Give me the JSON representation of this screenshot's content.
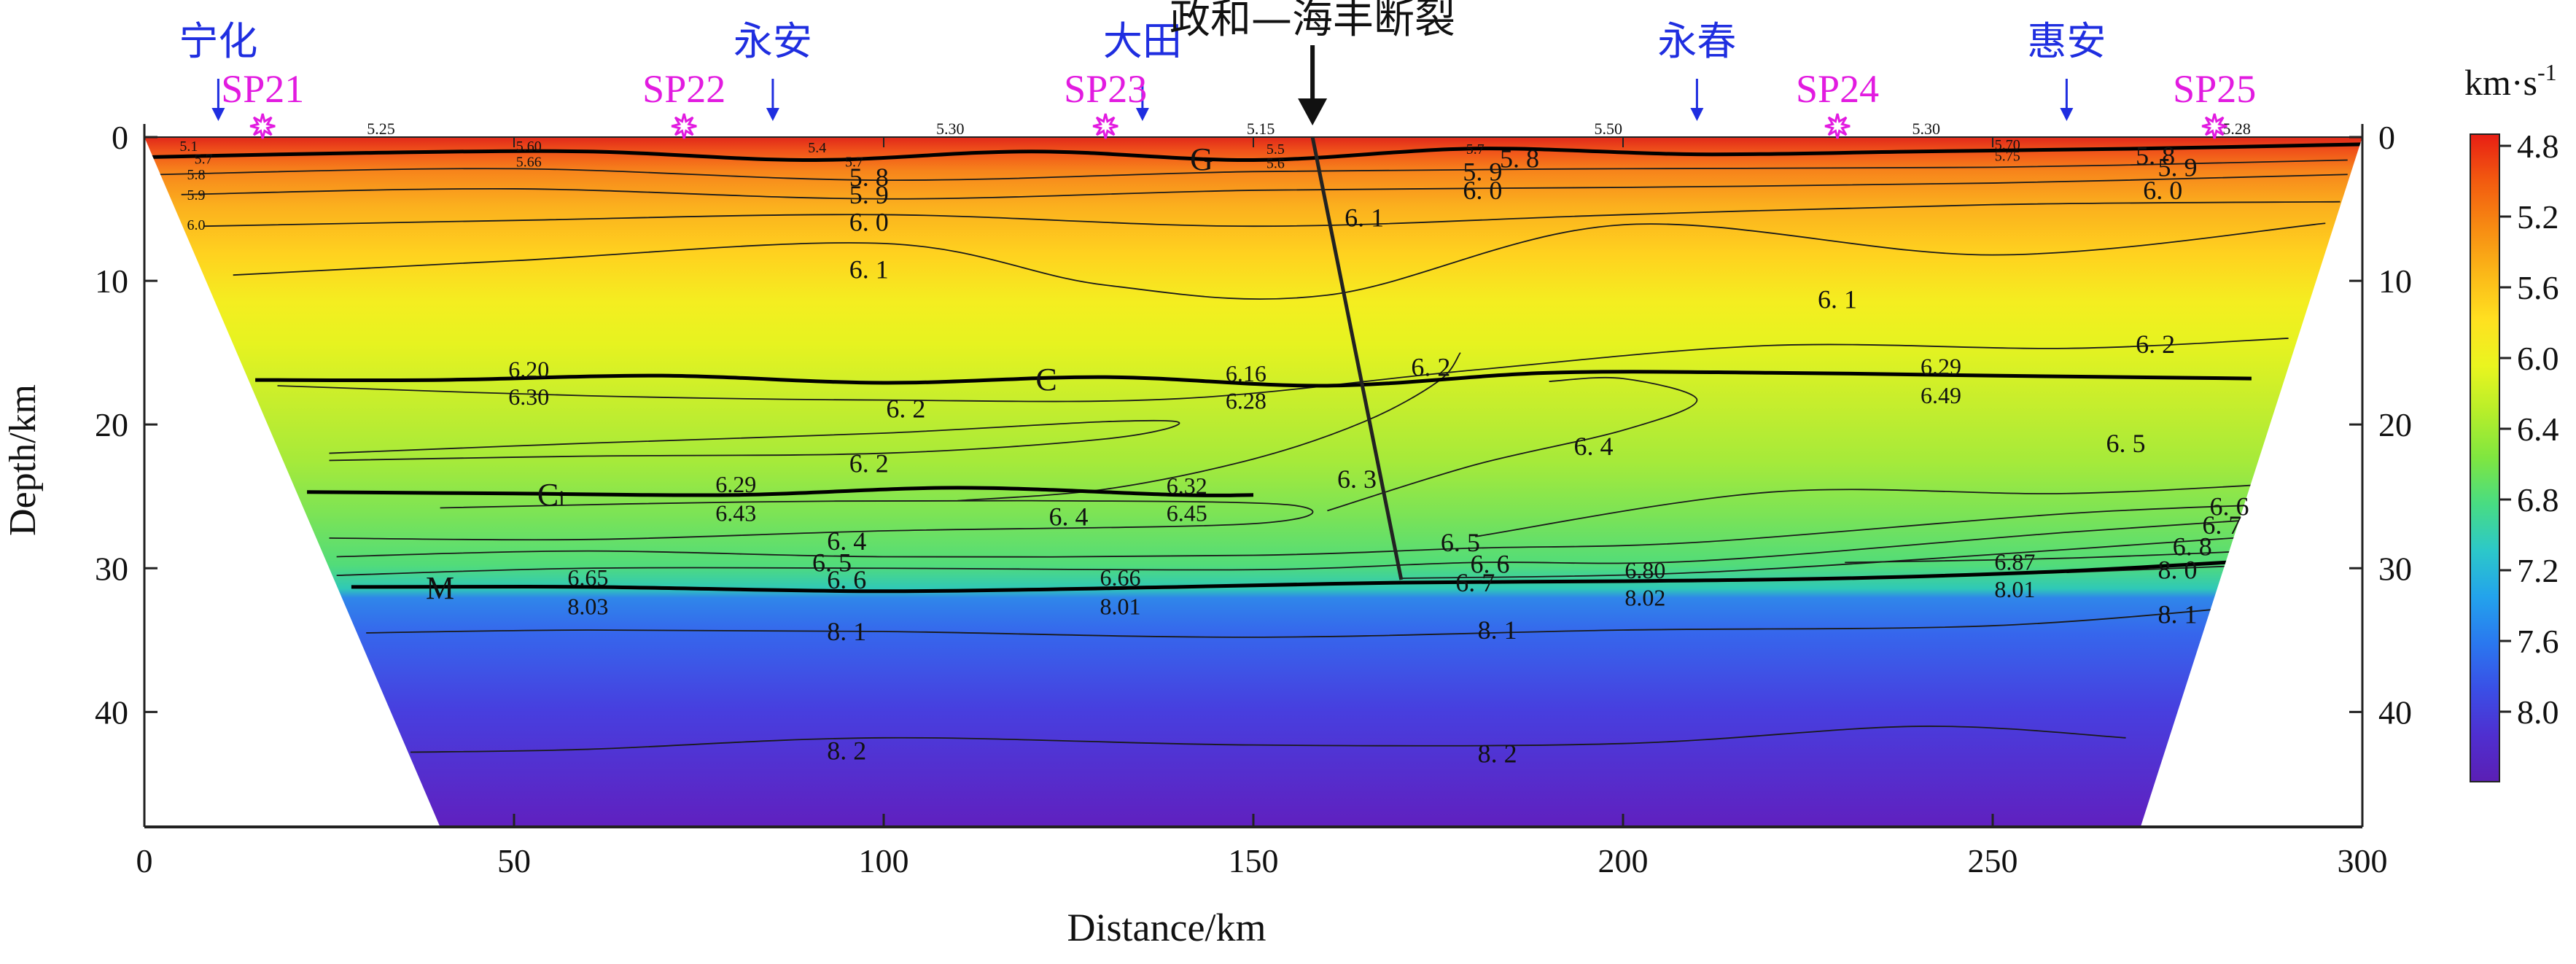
{
  "colors": {
    "town": "#1f2ee0",
    "shot": "#e21be0",
    "black": "#111111",
    "frame": "#222222",
    "colorbar": [
      "#e81e14",
      "#f25a10",
      "#f78a12",
      "#fbb718",
      "#ffe020",
      "#eaf51f",
      "#b7ee2a",
      "#7fe640",
      "#48dc83",
      "#2cc8c9",
      "#23a3ec",
      "#2a78ef",
      "#3a4fe6",
      "#4f2fd0",
      "#5b1fb4"
    ]
  },
  "chart_data": {
    "type": "heatmap",
    "title": "政和—海丰断裂",
    "xlabel": "Distance/km",
    "ylabel": "Depth/km",
    "xlim": [
      0,
      300
    ],
    "ylim": [
      0,
      48
    ],
    "xticks": [
      0,
      50,
      100,
      150,
      200,
      250,
      300
    ],
    "yticks": [
      0,
      10,
      20,
      30,
      40
    ],
    "colorbar": {
      "label_main": "km·s",
      "label_exp": "-1",
      "min": 4.8,
      "max": 8.2,
      "ticks": [
        "4.8",
        "5.2",
        "5.6",
        "6.0",
        "6.4",
        "6.8",
        "7.2",
        "7.6",
        "8.0"
      ]
    },
    "model_outline": {
      "top_left_x": 0,
      "top_right_x": 300,
      "bottom_left_x": 40,
      "bottom_right_x": 270,
      "bottom_depth": 48
    },
    "towns": [
      {
        "name": "宁化",
        "x": 10
      },
      {
        "name": "永安",
        "x": 85
      },
      {
        "name": "大田",
        "x": 135
      },
      {
        "name": "永春",
        "x": 210
      },
      {
        "name": "惠安",
        "x": 260
      }
    ],
    "shot_points": [
      {
        "name": "SP21",
        "x": 16
      },
      {
        "name": "SP22",
        "x": 73
      },
      {
        "name": "SP23",
        "x": 130
      },
      {
        "name": "SP24",
        "x": 229
      },
      {
        "name": "SP25",
        "x": 280
      }
    ],
    "fault": {
      "name": "政和—海丰断裂",
      "top": [
        158,
        0
      ],
      "bottom": [
        170,
        30.8
      ]
    },
    "interfaces": [
      {
        "name": "G",
        "x": [
          0,
          30,
          60,
          90,
          120,
          150,
          180,
          210,
          240,
          270,
          300
        ],
        "depth": [
          1.4,
          1.1,
          1.0,
          1.6,
          1.0,
          1.6,
          0.8,
          1.2,
          1.0,
          0.8,
          0.5
        ],
        "label_x": 143
      },
      {
        "name": "C",
        "x": [
          15,
          40,
          70,
          100,
          130,
          160,
          190,
          220,
          250,
          285
        ],
        "depth": [
          16.9,
          16.9,
          16.6,
          17.1,
          16.7,
          17.3,
          16.4,
          16.4,
          16.6,
          16.8
        ],
        "label_x": 122
      },
      {
        "name": "Ci",
        "x": [
          22,
          50,
          80,
          110,
          140,
          150
        ],
        "depth": [
          24.7,
          24.8,
          24.9,
          24.4,
          24.9,
          24.9
        ],
        "label_x": 55
      },
      {
        "name": "M",
        "x": [
          28,
          60,
          100,
          140,
          170,
          200,
          230,
          260,
          288
        ],
        "depth": [
          31.3,
          31.3,
          31.6,
          31.3,
          31.0,
          30.9,
          30.7,
          30.2,
          29.4
        ],
        "label_x": 40
      }
    ],
    "isolines": [
      {
        "value": "5.8",
        "x": [
          2,
          50,
          100,
          150,
          200,
          250,
          298
        ],
        "depth": [
          2.6,
          2.2,
          3.0,
          2.4,
          2.2,
          2.1,
          1.6
        ]
      },
      {
        "value": "5.9",
        "x": [
          5,
          50,
          100,
          150,
          200,
          250,
          298
        ],
        "depth": [
          4.0,
          3.6,
          4.3,
          3.7,
          3.5,
          3.2,
          2.6
        ]
      },
      {
        "value": "6.0",
        "x": [
          8,
          50,
          100,
          150,
          200,
          250,
          297
        ],
        "depth": [
          6.2,
          5.8,
          5.4,
          6.2,
          5.4,
          4.7,
          4.5
        ]
      },
      {
        "value": "6.1",
        "x": [
          12,
          50,
          100,
          130,
          160,
          200,
          250,
          295
        ],
        "depth": [
          9.6,
          8.6,
          7.4,
          10.3,
          11.0,
          6.1,
          8.2,
          6.0
        ]
      },
      {
        "value": "6.2",
        "x": [
          18,
          60,
          100,
          140,
          180,
          220,
          260,
          290
        ],
        "depth": [
          17.3,
          18.0,
          18.3,
          18.2,
          16.2,
          14.5,
          14.7,
          14.0
        ]
      },
      {
        "value": "6.2",
        "x": [
          25,
          60,
          100,
          130,
          140,
          130,
          100,
          60,
          25
        ],
        "depth": [
          22.0,
          21.3,
          20.6,
          19.8,
          19.9,
          21.0,
          22.0,
          22.2,
          22.5
        ]
      },
      {
        "value": "6.3",
        "x": [
          110,
          130,
          150,
          165,
          175,
          178
        ],
        "depth": [
          25.3,
          24.5,
          22.4,
          19.8,
          17.0,
          15.0
        ]
      },
      {
        "value": "6.4",
        "x": [
          160,
          180,
          200,
          210,
          200,
          190
        ],
        "depth": [
          26.0,
          22.8,
          20.4,
          18.3,
          16.8,
          17.0
        ]
      },
      {
        "value": "6.5",
        "x": [
          180,
          220,
          260,
          293
        ],
        "depth": [
          27.8,
          24.7,
          24.8,
          24.0
        ]
      },
      {
        "value": "6.4",
        "x": [
          25,
          60,
          100,
          150,
          155,
          120,
          80,
          40
        ],
        "depth": [
          27.9,
          28.0,
          27.4,
          26.9,
          25.6,
          25.3,
          25.4,
          25.8
        ]
      },
      {
        "value": "6.5",
        "x": [
          26,
          60,
          100,
          150,
          180,
          210,
          260,
          292
        ],
        "depth": [
          29.2,
          28.8,
          29.2,
          29.1,
          28.6,
          28.2,
          26.2,
          25.5
        ]
      },
      {
        "value": "6.6",
        "x": [
          26,
          60,
          100,
          150,
          180,
          210,
          260,
          292
        ],
        "depth": [
          30.5,
          30.0,
          30.0,
          30.1,
          29.6,
          29.5,
          27.5,
          26.4
        ]
      },
      {
        "value": "6.7",
        "x": [
          170,
          210,
          260,
          291
        ],
        "depth": [
          30.7,
          30.3,
          28.7,
          27.6
        ]
      },
      {
        "value": "6.8",
        "x": [
          230,
          260,
          290
        ],
        "depth": [
          29.6,
          29.3,
          28.7
        ]
      },
      {
        "value": "8.0",
        "x": [
          260,
          290
        ],
        "depth": [
          30.3,
          29.7
        ]
      },
      {
        "value": "8.1",
        "x": [
          30,
          60,
          100,
          150,
          200,
          250,
          288
        ],
        "depth": [
          34.5,
          34.3,
          34.4,
          34.8,
          34.3,
          34.0,
          32.5
        ]
      },
      {
        "value": "8.2",
        "x": [
          36,
          60,
          100,
          150,
          200,
          240,
          268
        ],
        "depth": [
          42.8,
          42.6,
          41.8,
          42.3,
          42.2,
          41.0,
          41.8
        ]
      }
    ],
    "contour_labels": [
      {
        "text": "5. 8",
        "x": 98,
        "depth": 2.7
      },
      {
        "text": "5. 9",
        "x": 98,
        "depth": 3.9
      },
      {
        "text": "6. 0",
        "x": 98,
        "depth": 5.8
      },
      {
        "text": "6. 1",
        "x": 98,
        "depth": 9.1
      },
      {
        "text": "5. 8",
        "x": 186,
        "depth": 1.4
      },
      {
        "text": "5. 9",
        "x": 181,
        "depth": 2.3
      },
      {
        "text": "6. 0",
        "x": 181,
        "depth": 3.6
      },
      {
        "text": "6. 1",
        "x": 165,
        "depth": 5.5
      },
      {
        "text": "6. 1",
        "x": 229,
        "depth": 11.2
      },
      {
        "text": "6. 0",
        "x": 273,
        "depth": 3.6
      },
      {
        "text": "5. 8",
        "x": 272,
        "depth": 1.2
      },
      {
        "text": "5. 9",
        "x": 275,
        "depth": 2.0
      },
      {
        "text": "6. 2",
        "x": 174,
        "depth": 15.9
      },
      {
        "text": "6. 2",
        "x": 272,
        "depth": 14.3
      },
      {
        "text": "6. 2",
        "x": 103,
        "depth": 18.8
      },
      {
        "text": "6. 2",
        "x": 98,
        "depth": 22.6
      },
      {
        "text": "6. 3",
        "x": 164,
        "depth": 23.7
      },
      {
        "text": "6. 4",
        "x": 196,
        "depth": 21.4
      },
      {
        "text": "6. 5",
        "x": 268,
        "depth": 21.2
      },
      {
        "text": "6. 4",
        "x": 125,
        "depth": 26.3
      },
      {
        "text": "6. 4",
        "x": 95,
        "depth": 28.0
      },
      {
        "text": "6. 5",
        "x": 93,
        "depth": 29.5
      },
      {
        "text": "6. 6",
        "x": 95,
        "depth": 30.7
      },
      {
        "text": "6. 5",
        "x": 178,
        "depth": 28.1
      },
      {
        "text": "6. 6",
        "x": 182,
        "depth": 29.6
      },
      {
        "text": "6. 7",
        "x": 180,
        "depth": 30.9
      },
      {
        "text": "6. 6",
        "x": 282,
        "depth": 25.6
      },
      {
        "text": "6. 7",
        "x": 281,
        "depth": 26.9
      },
      {
        "text": "6. 8",
        "x": 277,
        "depth": 28.4
      },
      {
        "text": "8. 0",
        "x": 275,
        "depth": 30.0
      },
      {
        "text": "8. 1",
        "x": 275,
        "depth": 33.1
      },
      {
        "text": "8. 1",
        "x": 95,
        "depth": 34.3
      },
      {
        "text": "8. 1",
        "x": 183,
        "depth": 34.2
      },
      {
        "text": "8. 2",
        "x": 95,
        "depth": 42.6
      },
      {
        "text": "8. 2",
        "x": 183,
        "depth": 42.8
      }
    ],
    "interface_values": [
      {
        "text": "6.20",
        "x": 52,
        "depth": 16.1
      },
      {
        "text": "6.30",
        "x": 52,
        "depth": 18.0
      },
      {
        "text": "6.16",
        "x": 149,
        "depth": 16.4
      },
      {
        "text": "6.28",
        "x": 149,
        "depth": 18.3
      },
      {
        "text": "6.29",
        "x": 243,
        "depth": 15.9
      },
      {
        "text": "6.49",
        "x": 243,
        "depth": 17.9
      },
      {
        "text": "6.29",
        "x": 80,
        "depth": 24.1
      },
      {
        "text": "6.43",
        "x": 80,
        "depth": 26.1
      },
      {
        "text": "6.32",
        "x": 141,
        "depth": 24.2
      },
      {
        "text": "6.45",
        "x": 141,
        "depth": 26.1
      },
      {
        "text": "6.65",
        "x": 60,
        "depth": 30.6
      },
      {
        "text": "8.03",
        "x": 60,
        "depth": 32.6
      },
      {
        "text": "6.66",
        "x": 132,
        "depth": 30.6
      },
      {
        "text": "8.01",
        "x": 132,
        "depth": 32.6
      },
      {
        "text": "6.80",
        "x": 203,
        "depth": 30.1
      },
      {
        "text": "8.02",
        "x": 203,
        "depth": 32.0
      },
      {
        "text": "6.87",
        "x": 253,
        "depth": 29.5
      },
      {
        "text": "8.01",
        "x": 253,
        "depth": 31.4
      }
    ],
    "surface_values": [
      {
        "text": "5.25",
        "x": 32
      },
      {
        "text": "5.30",
        "x": 109
      },
      {
        "text": "5.15",
        "x": 151
      },
      {
        "text": "5.50",
        "x": 198
      },
      {
        "text": "5.30",
        "x": 241
      },
      {
        "text": "5.28",
        "x": 283
      }
    ],
    "small_labels": [
      {
        "text": "5.1",
        "x": 6,
        "depth": 0.6
      },
      {
        "text": "5.7",
        "x": 8,
        "depth": 1.5
      },
      {
        "text": "5.8",
        "x": 7,
        "depth": 2.6
      },
      {
        "text": "5.9",
        "x": 7,
        "depth": 4.0
      },
      {
        "text": "6.0",
        "x": 7,
        "depth": 6.1
      },
      {
        "text": "5.60",
        "x": 52,
        "depth": 0.6
      },
      {
        "text": "5.66",
        "x": 52,
        "depth": 1.7
      },
      {
        "text": "5.4",
        "x": 91,
        "depth": 0.7
      },
      {
        "text": "5.7",
        "x": 96,
        "depth": 1.7
      },
      {
        "text": "5.5",
        "x": 153,
        "depth": 0.8
      },
      {
        "text": "5.6",
        "x": 153,
        "depth": 1.8
      },
      {
        "text": "5.7",
        "x": 180,
        "depth": 0.8
      },
      {
        "text": "5.70",
        "x": 252,
        "depth": 0.5
      },
      {
        "text": "5.75",
        "x": 252,
        "depth": 1.3
      }
    ]
  }
}
